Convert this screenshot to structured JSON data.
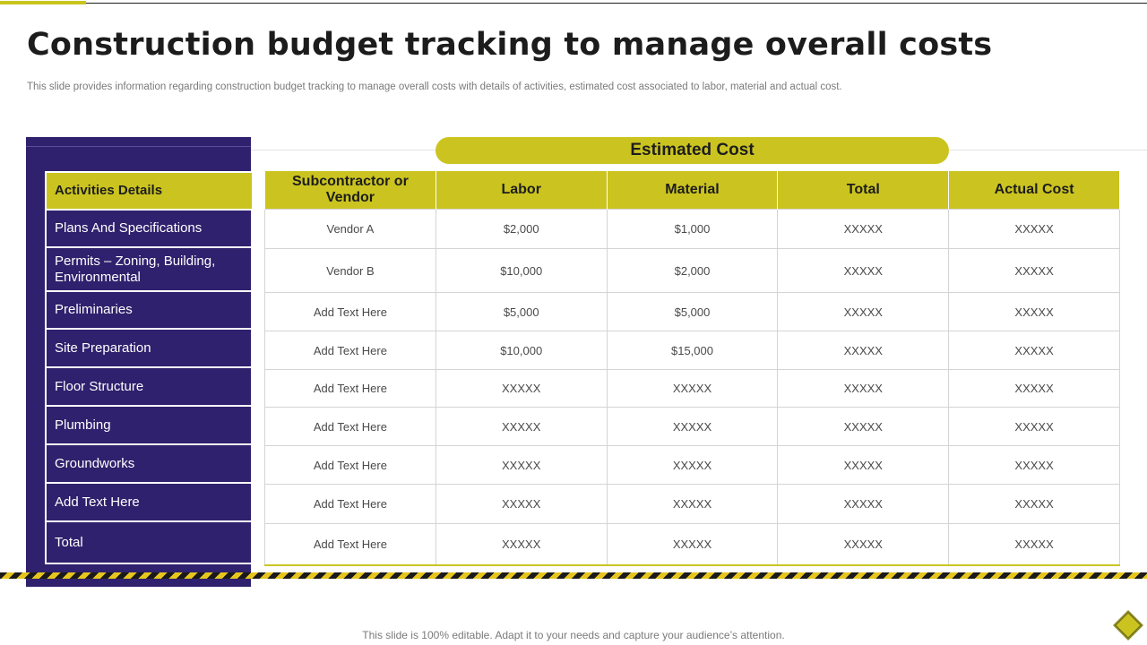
{
  "slide": {
    "title": "Construction budget tracking to manage overall costs",
    "subtitle": "This slide provides information regarding construction budget tracking to manage overall costs with details of activities, estimated cost associated to labor, material and actual cost.",
    "footer": "This slide is 100% editable. Adapt it to your needs and capture your audience’s attention."
  },
  "estimated_cost_label": "Estimated Cost",
  "activities": {
    "header": "Activities Details",
    "items": [
      "Plans And Specifications",
      "Permits – Zoning, Building, Environmental",
      "Preliminaries",
      "Site Preparation",
      "Floor Structure",
      "Plumbing",
      "Groundworks",
      "Add Text Here",
      "Total"
    ]
  },
  "cost_table": {
    "headers": [
      "Subcontractor or Vendor",
      "Labor",
      "Material",
      "Total",
      "Actual Cost"
    ],
    "rows": [
      [
        "Vendor A",
        "$2,000",
        "$1,000",
        "XXXXX",
        "XXXXX"
      ],
      [
        "Vendor B",
        "$10,000",
        "$2,000",
        "XXXXX",
        "XXXXX"
      ],
      [
        "Add Text Here",
        "$5,000",
        "$5,000",
        "XXXXX",
        "XXXXX"
      ],
      [
        "Add Text Here",
        "$10,000",
        "$15,000",
        "XXXXX",
        "XXXXX"
      ],
      [
        "Add Text Here",
        "XXXXX",
        "XXXXX",
        "XXXXX",
        "XXXXX"
      ],
      [
        "Add Text Here",
        "XXXXX",
        "XXXXX",
        "XXXXX",
        "XXXXX"
      ],
      [
        "Add Text Here",
        "XXXXX",
        "XXXXX",
        "XXXXX",
        "XXXXX"
      ],
      [
        "Add Text Here",
        "XXXXX",
        "XXXXX",
        "XXXXX",
        "XXXXX"
      ],
      [
        "Add Text Here",
        "XXXXX",
        "XXXXX",
        "XXXXX",
        "XXXXX"
      ]
    ]
  },
  "colors": {
    "accent_yellow": "#cbc420",
    "panel_purple": "#2f216d",
    "stripe_dark": "#1a1a1a",
    "stripe_yellow": "#e6c51e"
  },
  "icons": {
    "corner_logo": "diamond-logo-icon"
  }
}
